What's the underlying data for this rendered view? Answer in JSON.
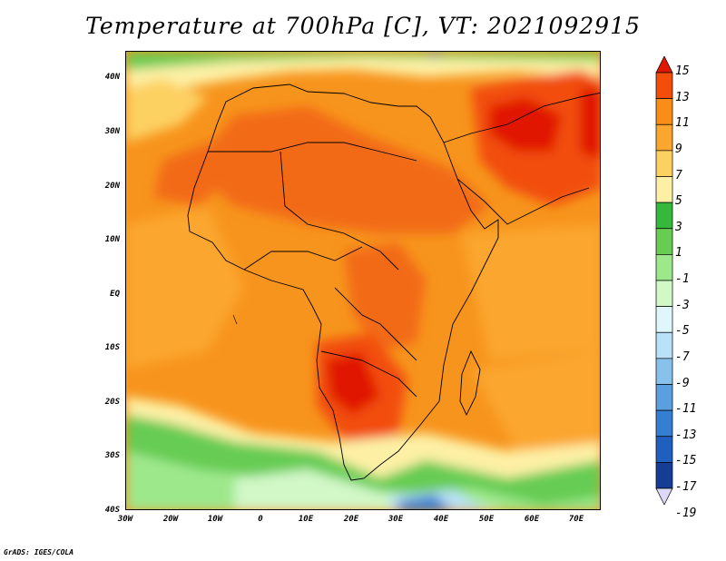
{
  "title": "Temperature at 700hPa [C], VT: 2021092915",
  "credit": "GrADS: IGES/COLA",
  "latitude_labels": [
    "40N",
    "30N",
    "20N",
    "10N",
    "EQ",
    "10S",
    "20S",
    "30S",
    "40S"
  ],
  "longitude_labels": [
    "30W",
    "20W",
    "10W",
    "0",
    "10E",
    "20E",
    "30E",
    "40E",
    "50E",
    "60E",
    "70E"
  ],
  "colorbar": {
    "labels": [
      "15",
      "13",
      "11",
      "9",
      "7",
      "5",
      "3",
      "1",
      "-1",
      "-3",
      "-5",
      "-7",
      "-9",
      "-11",
      "-13",
      "-15",
      "-17",
      "-19"
    ],
    "colors": [
      "#e01800",
      "#f24e0a",
      "#f98d17",
      "#fba62e",
      "#fdd062",
      "#fdf0a5",
      "#36b83b",
      "#66cc52",
      "#9ee88c",
      "#d2f8c8",
      "#dff7fb",
      "#b9e1f7",
      "#88c2ec",
      "#5a9fe0",
      "#347fd1",
      "#1f5fbe",
      "#173c95",
      "#ddd8f5"
    ]
  }
}
